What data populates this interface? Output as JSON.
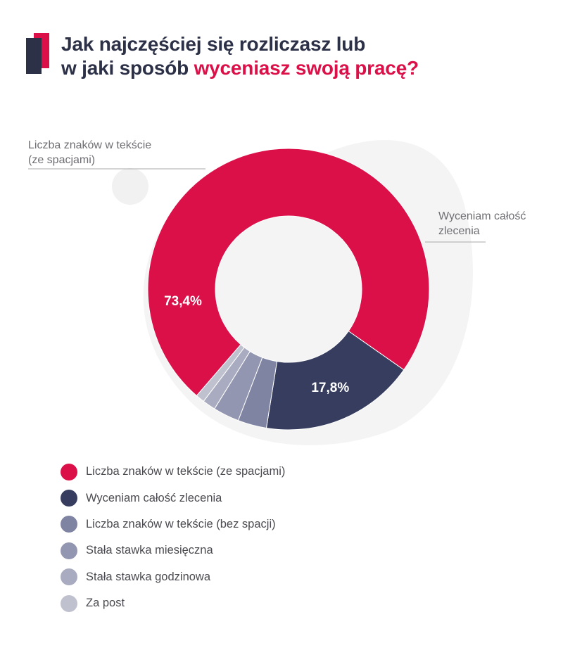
{
  "header": {
    "title_line1": "Jak najczęściej się rozliczasz lub",
    "title_line2_prefix": "w jaki sposób ",
    "title_line2_accent": "wyceniasz swoją pracę?"
  },
  "callouts": {
    "left": [
      "Liczba znaków w tekście",
      "(ze spacjami)"
    ],
    "right": [
      "Wyceniam całość",
      "zlecenia"
    ]
  },
  "colors": {
    "accent": "#dc1048",
    "dark": "#363d5f",
    "background_blob": "#f4f4f5"
  },
  "chart_data": {
    "type": "pie",
    "variant": "donut",
    "title": "Jak najczęściej się rozliczasz lub w jaki sposób wyceniasz swoją pracę?",
    "unit": "%",
    "slices": [
      {
        "label": "Liczba znaków w tekście (ze spacjami)",
        "value": 73.4,
        "display": "73,4%",
        "color": "#dc1048"
      },
      {
        "label": "Wyceniam całość zlecenia",
        "value": 17.8,
        "display": "17,8%",
        "color": "#363d5f"
      },
      {
        "label": "Liczba znaków w tekście (bez spacji)",
        "value": 3.3,
        "color": "#7f84a3"
      },
      {
        "label": "Stała stawka miesięczna",
        "value": 3.0,
        "color": "#9396b0"
      },
      {
        "label": "Stała stawka godzinowa",
        "value": 1.5,
        "color": "#a9acc0"
      },
      {
        "label": "Za post",
        "value": 1.0,
        "color": "#c0c1ce"
      }
    ],
    "legend_position": "bottom-left"
  }
}
